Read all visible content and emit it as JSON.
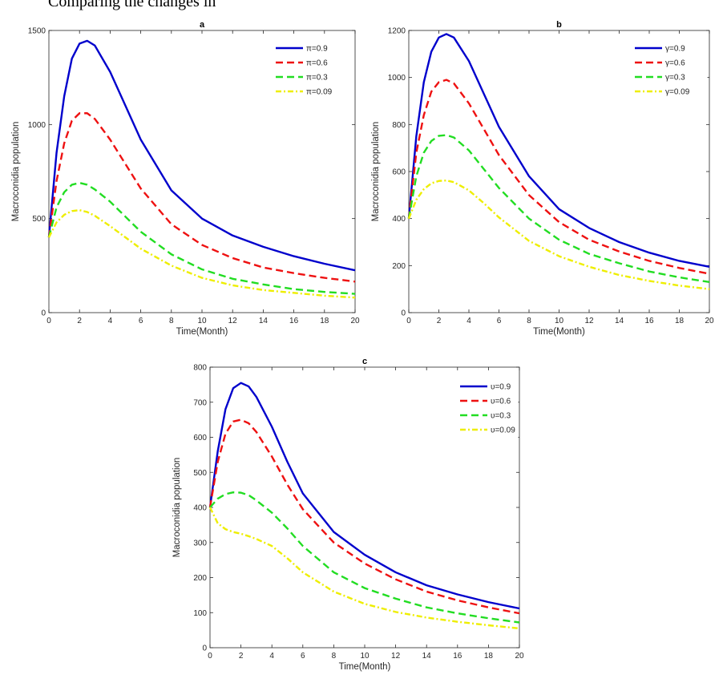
{
  "header": {
    "text": "Comparing the changes in"
  },
  "chart_data": [
    {
      "type": "line",
      "title": "a",
      "xlabel": "Time(Month)",
      "ylabel": "Macroconidia  population",
      "xlim": [
        0,
        20
      ],
      "ylim": [
        0,
        1500
      ],
      "xticks": [
        0,
        2,
        4,
        6,
        8,
        10,
        12,
        14,
        16,
        18,
        20
      ],
      "yticks": [
        0,
        500,
        1000,
        1500
      ],
      "legend_position": "top-right",
      "grid": false,
      "series": [
        {
          "name": "π=0.9",
          "color": "#0000cc",
          "dash": "solid",
          "x": [
            0,
            0.5,
            1,
            1.5,
            2,
            2.5,
            3,
            4,
            5,
            6,
            8,
            10,
            12,
            14,
            16,
            18,
            20
          ],
          "y": [
            400,
            850,
            1150,
            1350,
            1430,
            1445,
            1420,
            1280,
            1100,
            920,
            650,
            500,
            410,
            350,
            300,
            260,
            225
          ]
        },
        {
          "name": "π=0.6",
          "color": "#ee1111",
          "dash": "dashed",
          "x": [
            0,
            0.5,
            1,
            1.5,
            2,
            2.5,
            3,
            4,
            5,
            6,
            8,
            10,
            12,
            14,
            16,
            18,
            20
          ],
          "y": [
            400,
            700,
            900,
            1020,
            1060,
            1060,
            1030,
            920,
            790,
            660,
            470,
            360,
            290,
            240,
            210,
            185,
            165
          ]
        },
        {
          "name": "π=0.3",
          "color": "#22dd22",
          "dash": "dashed",
          "x": [
            0,
            0.5,
            1,
            1.5,
            2,
            2.5,
            3,
            4,
            5,
            6,
            8,
            10,
            12,
            14,
            16,
            18,
            20
          ],
          "y": [
            400,
            560,
            640,
            680,
            690,
            680,
            655,
            590,
            510,
            430,
            310,
            230,
            180,
            150,
            125,
            110,
            100
          ]
        },
        {
          "name": "π=0.09",
          "color": "#eeee00",
          "dash": "dashdot",
          "x": [
            0,
            0.5,
            1,
            1.5,
            2,
            2.5,
            3,
            4,
            5,
            6,
            8,
            10,
            12,
            14,
            16,
            18,
            20
          ],
          "y": [
            400,
            480,
            520,
            540,
            545,
            535,
            515,
            460,
            400,
            340,
            250,
            185,
            145,
            120,
            105,
            90,
            80
          ]
        }
      ]
    },
    {
      "type": "line",
      "title": "b",
      "xlabel": "Time(Month)",
      "ylabel": "Macroconidia  population",
      "xlim": [
        0,
        20
      ],
      "ylim": [
        0,
        1200
      ],
      "xticks": [
        0,
        2,
        4,
        6,
        8,
        10,
        12,
        14,
        16,
        18,
        20
      ],
      "yticks": [
        0,
        200,
        400,
        600,
        800,
        1000,
        1200
      ],
      "legend_position": "top-right",
      "grid": false,
      "series": [
        {
          "name": "γ=0.9",
          "color": "#0000cc",
          "dash": "solid",
          "x": [
            0,
            0.5,
            1,
            1.5,
            2,
            2.5,
            3,
            4,
            5,
            6,
            8,
            10,
            12,
            14,
            16,
            18,
            20
          ],
          "y": [
            400,
            750,
            980,
            1110,
            1170,
            1185,
            1170,
            1070,
            930,
            790,
            580,
            440,
            360,
            300,
            255,
            220,
            195
          ]
        },
        {
          "name": "γ=0.6",
          "color": "#ee1111",
          "dash": "dashed",
          "x": [
            0,
            0.5,
            1,
            1.5,
            2,
            2.5,
            3,
            4,
            5,
            6,
            8,
            10,
            12,
            14,
            16,
            18,
            20
          ],
          "y": [
            400,
            680,
            840,
            940,
            980,
            990,
            975,
            890,
            780,
            670,
            500,
            385,
            310,
            260,
            220,
            190,
            165
          ]
        },
        {
          "name": "γ=0.3",
          "color": "#22dd22",
          "dash": "dashed",
          "x": [
            0,
            0.5,
            1,
            1.5,
            2,
            2.5,
            3,
            4,
            5,
            6,
            8,
            10,
            12,
            14,
            16,
            18,
            20
          ],
          "y": [
            400,
            580,
            680,
            730,
            752,
            755,
            745,
            690,
            610,
            530,
            400,
            310,
            250,
            210,
            175,
            150,
            130
          ]
        },
        {
          "name": "γ=0.09",
          "color": "#eeee00",
          "dash": "dashdot",
          "x": [
            0,
            0.5,
            1,
            1.5,
            2,
            2.5,
            3,
            4,
            5,
            6,
            8,
            10,
            12,
            14,
            16,
            18,
            20
          ],
          "y": [
            400,
            480,
            525,
            550,
            560,
            562,
            555,
            520,
            465,
            405,
            305,
            240,
            195,
            160,
            135,
            115,
            100
          ]
        }
      ]
    },
    {
      "type": "line",
      "title": "c",
      "xlabel": "Time(Month)",
      "ylabel": "Macroconidia population",
      "xlim": [
        0,
        20
      ],
      "ylim": [
        0,
        800
      ],
      "xticks": [
        0,
        2,
        4,
        6,
        8,
        10,
        12,
        14,
        16,
        18,
        20
      ],
      "yticks": [
        0,
        100,
        200,
        300,
        400,
        500,
        600,
        700,
        800
      ],
      "legend_position": "top-right",
      "grid": false,
      "series": [
        {
          "name": "υ=0.9",
          "color": "#0000cc",
          "dash": "solid",
          "x": [
            0,
            0.5,
            1,
            1.5,
            2,
            2.5,
            3,
            4,
            5,
            6,
            8,
            10,
            12,
            14,
            16,
            18,
            20
          ],
          "y": [
            400,
            560,
            680,
            740,
            755,
            745,
            715,
            630,
            530,
            440,
            330,
            265,
            215,
            178,
            152,
            130,
            112
          ]
        },
        {
          "name": "υ=0.6",
          "color": "#ee1111",
          "dash": "dashed",
          "x": [
            0,
            0.5,
            1,
            1.5,
            2,
            2.5,
            3,
            4,
            5,
            6,
            8,
            10,
            12,
            14,
            16,
            18,
            20
          ],
          "y": [
            400,
            530,
            610,
            645,
            650,
            640,
            615,
            545,
            465,
            395,
            300,
            240,
            195,
            160,
            135,
            115,
            98
          ]
        },
        {
          "name": "υ=0.3",
          "color": "#22dd22",
          "dash": "dashed",
          "x": [
            0,
            0.5,
            1,
            1.5,
            2,
            2.5,
            3,
            4,
            5,
            6,
            8,
            10,
            12,
            14,
            16,
            18,
            20
          ],
          "y": [
            400,
            425,
            438,
            443,
            442,
            435,
            420,
            385,
            340,
            290,
            215,
            170,
            140,
            115,
            98,
            84,
            72
          ]
        },
        {
          "name": "υ=0.09",
          "color": "#eeee00",
          "dash": "dashdot",
          "x": [
            0,
            0.5,
            1,
            1.5,
            2,
            2.5,
            3,
            4,
            5,
            6,
            8,
            10,
            12,
            14,
            16,
            18,
            20
          ],
          "y": [
            400,
            355,
            338,
            330,
            325,
            318,
            310,
            290,
            255,
            215,
            160,
            125,
            102,
            86,
            74,
            64,
            55
          ]
        }
      ]
    }
  ]
}
